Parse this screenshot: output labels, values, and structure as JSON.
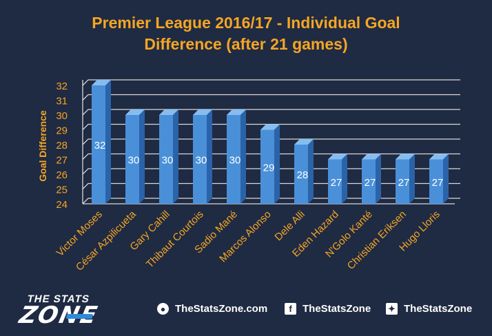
{
  "chart_data": {
    "type": "bar",
    "title": "Premier League 2016/17 - Individual Goal Difference (after 21 games)",
    "title_lines": [
      "Premier League 2016/17 - Individual Goal",
      "Difference (after 21 games)"
    ],
    "ylabel": "Goal Difference",
    "xlabel": "",
    "ylim": [
      24,
      32
    ],
    "yticks": [
      24,
      25,
      26,
      27,
      28,
      29,
      30,
      31,
      32
    ],
    "grid": true,
    "legend": "none",
    "categories": [
      "Victor Moses",
      "César Azpilicueta",
      "Gary Cahill",
      "Thibaut Courtois",
      "Sadio Mané",
      "Marcos Alonso",
      "Dele Alli",
      "Eden Hazard",
      "N'Golo Kanté",
      "Christian Eriksen",
      "Hugo Lloris"
    ],
    "values": [
      32,
      30,
      30,
      30,
      30,
      29,
      28,
      27,
      27,
      27,
      27
    ],
    "data_labels": [
      "32",
      "30",
      "30",
      "30",
      "30",
      "29",
      "28",
      "27",
      "27",
      "27",
      "27"
    ],
    "colors": {
      "bar_front": "#4a90d9",
      "bar_side": "#2a63a8",
      "bar_top": "#86bdf0",
      "grid": "#d9d9d9",
      "title": "#f5a623",
      "tick": "#f5a623",
      "data_label": "#ffffff",
      "background": "#1f2a43"
    }
  },
  "footer": {
    "logo_top": "THE STATS",
    "logo_bottom": "ZONE",
    "website": "TheStatsZone.com",
    "facebook": "TheStatsZone",
    "twitter": "TheStatsZone",
    "icons": [
      "globe-icon",
      "facebook-icon",
      "twitter-icon"
    ]
  }
}
